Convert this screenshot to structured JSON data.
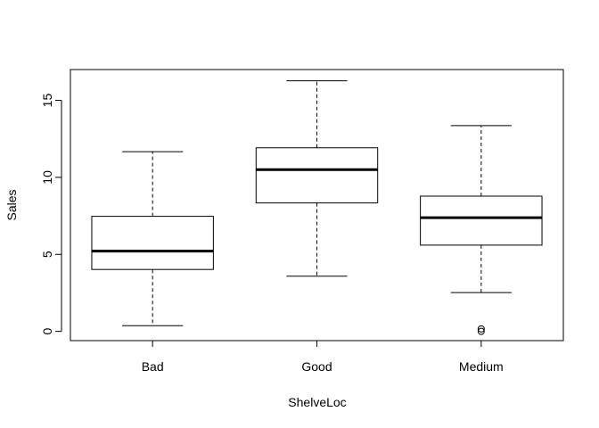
{
  "chart_data": {
    "type": "boxplot",
    "title": "",
    "xlabel": "ShelveLoc",
    "ylabel": "Sales",
    "ylim": [
      -0.6,
      17.0
    ],
    "y_ticks": [
      0,
      5,
      10,
      15
    ],
    "y_tick_labels": [
      "0",
      "5",
      "10",
      "15"
    ],
    "categories": [
      "Bad",
      "Good",
      "Medium"
    ],
    "boxes": [
      {
        "category": "Bad",
        "whisker_low": 0.37,
        "q1": 4.02,
        "median": 5.21,
        "q3": 7.47,
        "whisker_high": 11.67,
        "outliers": []
      },
      {
        "category": "Good",
        "whisker_low": 3.58,
        "q1": 8.34,
        "median": 10.5,
        "q3": 11.92,
        "whisker_high": 16.27,
        "outliers": []
      },
      {
        "category": "Medium",
        "whisker_low": 2.52,
        "q1": 5.6,
        "median": 7.38,
        "q3": 8.78,
        "whisker_high": 13.36,
        "outliers": [
          0.16,
          0.0
        ]
      }
    ],
    "grid": false,
    "legend": "none"
  }
}
